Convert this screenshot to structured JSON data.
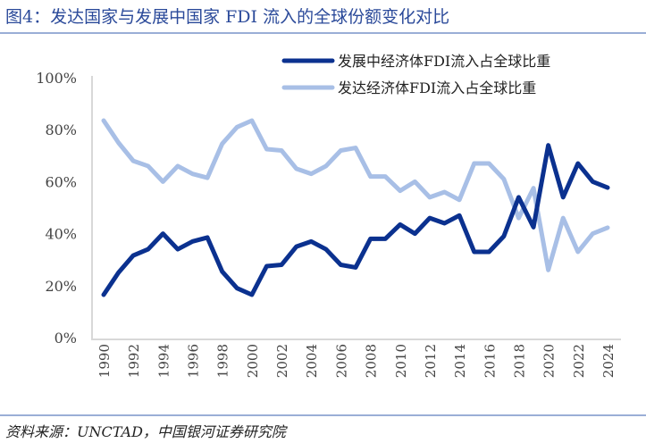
{
  "title": "图4：发达国家与发展中国家 FDI 流入的全球份额变化对比",
  "source": "资料来源：UNCTAD，中国银河证券研究院",
  "colors": {
    "developing": "#0b318f",
    "developed": "#a8bfe6"
  },
  "chart_data": {
    "type": "line",
    "title": "图4：发达国家与发展中国家 FDI 流入的全球份额变化对比",
    "xlabel": "",
    "ylabel": "",
    "ylim": [
      0,
      100
    ],
    "yticks": [
      "0%",
      "20%",
      "40%",
      "60%",
      "80%",
      "100%"
    ],
    "xticks": [
      "1990",
      "1992",
      "1994",
      "1996",
      "1998",
      "2000",
      "2002",
      "2004",
      "2006",
      "2008",
      "2010",
      "2012",
      "2014",
      "2016",
      "2018",
      "2020",
      "2022",
      "2024"
    ],
    "x": [
      1990,
      1991,
      1992,
      1993,
      1994,
      1995,
      1996,
      1997,
      1998,
      1999,
      2000,
      2001,
      2002,
      2003,
      2004,
      2005,
      2006,
      2007,
      2008,
      2009,
      2010,
      2011,
      2012,
      2013,
      2014,
      2015,
      2016,
      2017,
      2018,
      2019,
      2020,
      2021,
      2022,
      2023,
      2024
    ],
    "legend_position": "top-right",
    "series": [
      {
        "name": "发展中经济体FDI流入占全球比重",
        "values": [
          16.5,
          25,
          31.6,
          34,
          40,
          34,
          37,
          38.5,
          25.4,
          19,
          16.5,
          27.5,
          28,
          35,
          37,
          34,
          28,
          27,
          38,
          38,
          43.5,
          40,
          46,
          44,
          47,
          33,
          33,
          39,
          54,
          42.5,
          74,
          54,
          67,
          60,
          57.7
        ]
      },
      {
        "name": "发达经济体FDI流入占全球比重",
        "values": [
          83.5,
          75,
          68,
          66,
          60,
          66,
          63,
          61.5,
          74.6,
          81,
          83.5,
          72.5,
          72,
          65,
          63,
          66,
          72,
          73,
          62,
          62,
          56.5,
          60,
          54,
          56,
          53,
          67,
          67,
          61,
          46,
          57.5,
          26,
          46,
          33,
          40,
          42.3
        ]
      }
    ]
  }
}
